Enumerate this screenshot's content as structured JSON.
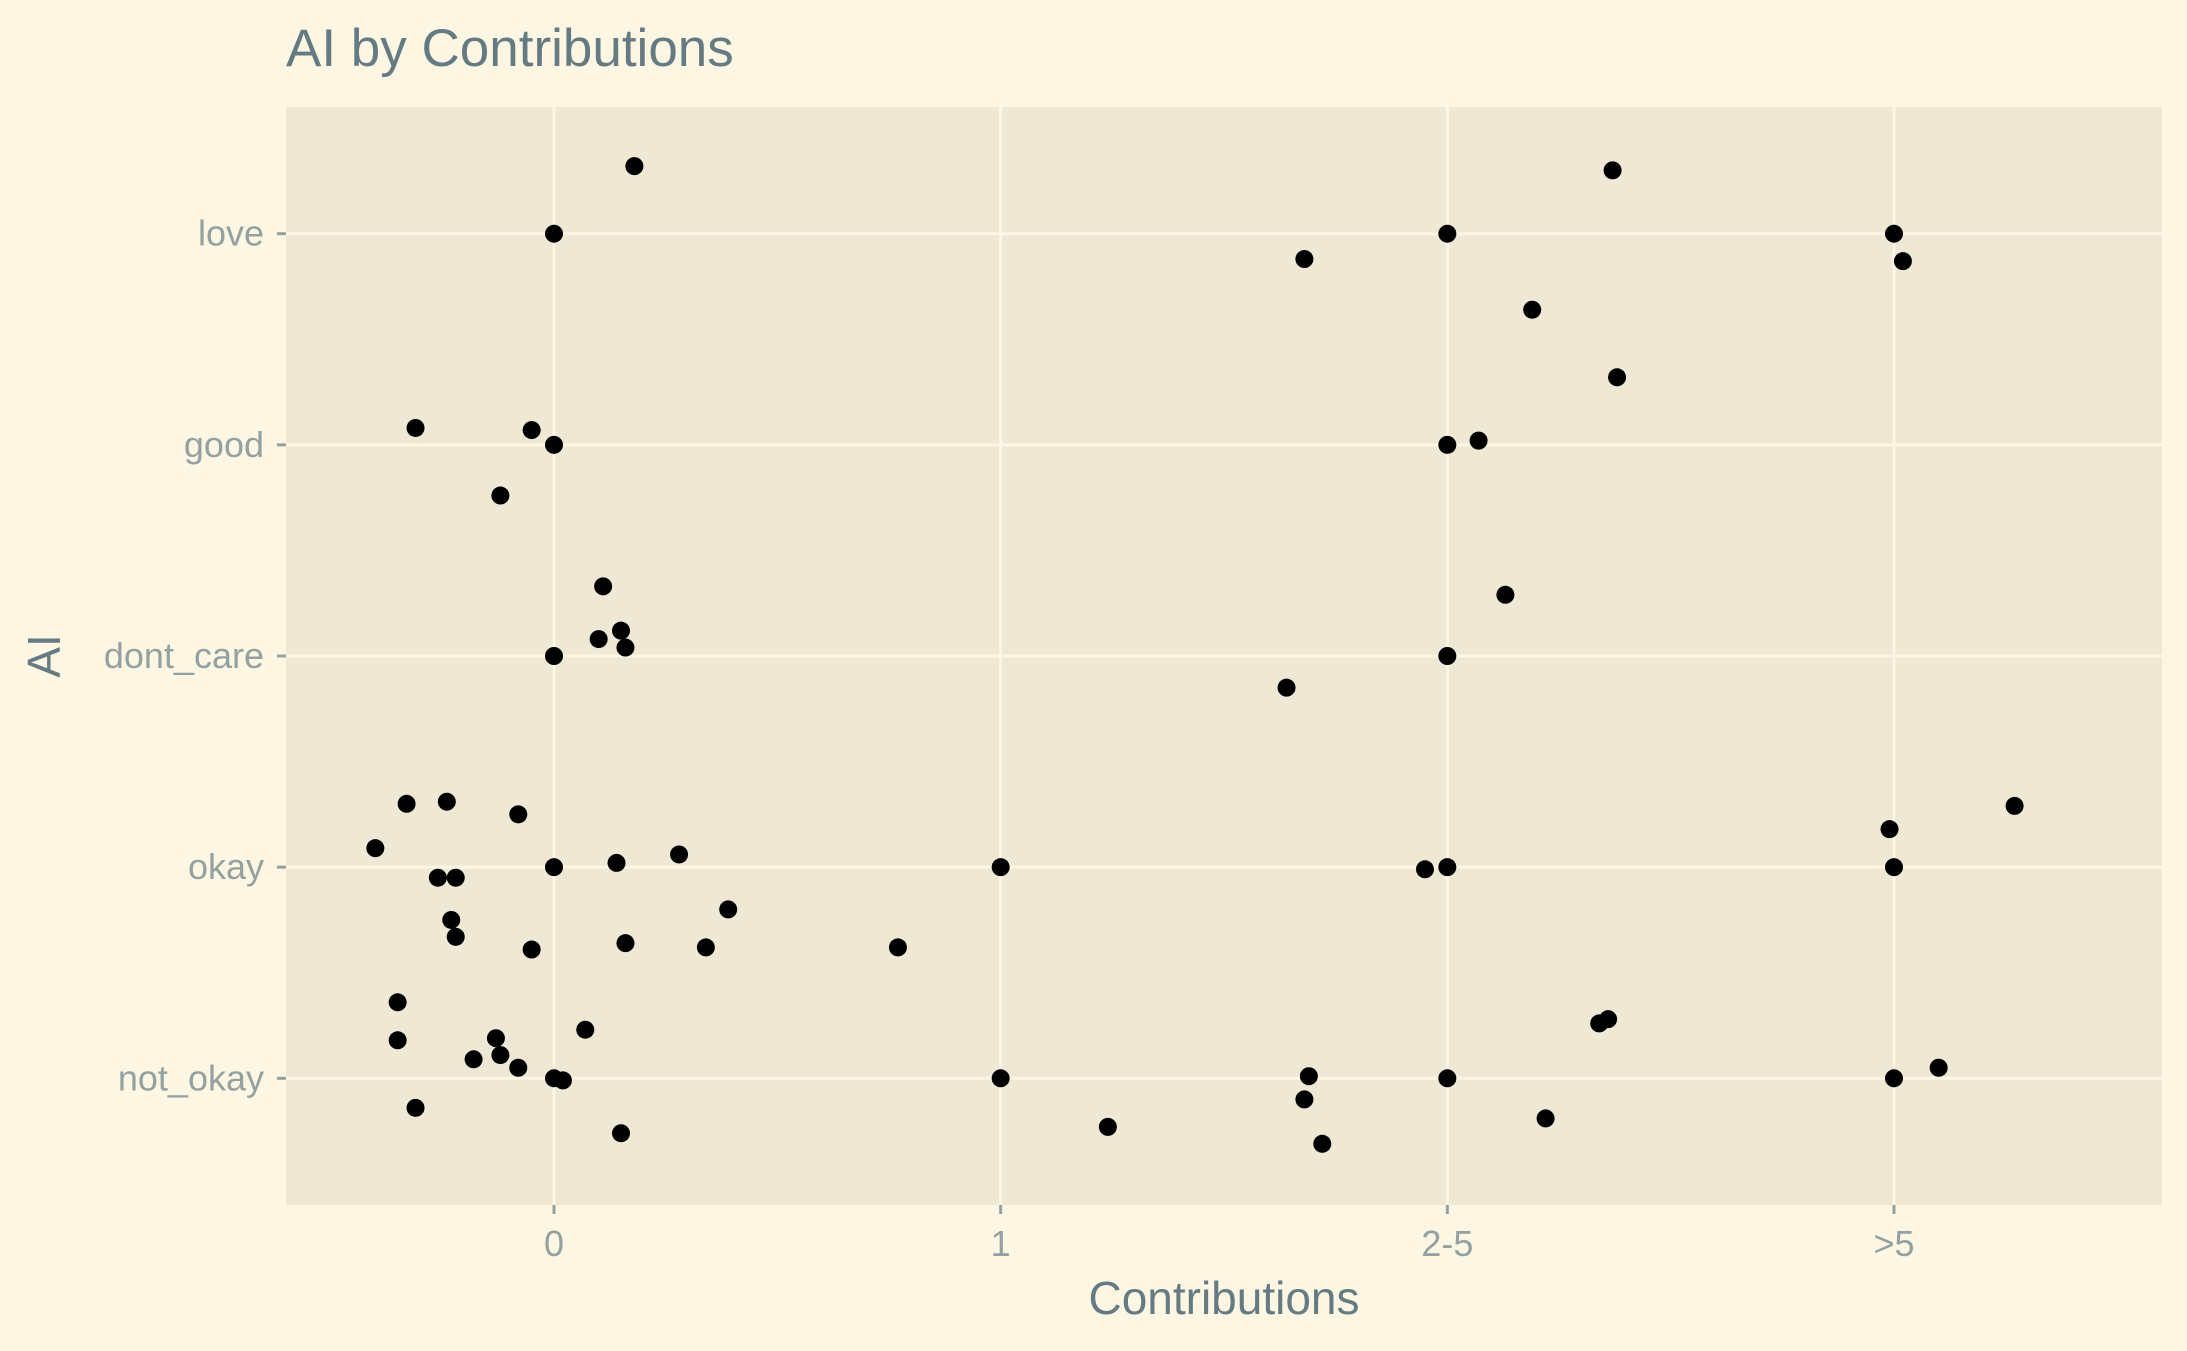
{
  "chart_data": {
    "type": "scatter",
    "title": "AI by Contributions",
    "xlabel": "Contributions",
    "ylabel": "AI",
    "x_categories": [
      "0",
      "1",
      "2-5",
      ">5"
    ],
    "y_categories": [
      "not_okay",
      "okay",
      "dont_care",
      "good",
      "love"
    ],
    "xlim": [
      -0.6,
      3.6
    ],
    "ylim": [
      0.4,
      5.6
    ],
    "grid": true,
    "colors": {
      "background": "#fdf6e3",
      "panel": "#eee8d5",
      "grid": "#fdf6e3",
      "point": "#000000",
      "text": "#657b83",
      "tick_text": "#93a1a1"
    },
    "points": [
      {
        "x": 0.18,
        "y": 5.32
      },
      {
        "x": 2.37,
        "y": 5.3
      },
      {
        "x": 0.0,
        "y": 5.0
      },
      {
        "x": 2.0,
        "y": 5.0
      },
      {
        "x": 3.0,
        "y": 5.0
      },
      {
        "x": 1.68,
        "y": 4.88
      },
      {
        "x": 3.02,
        "y": 4.87
      },
      {
        "x": 2.19,
        "y": 4.64
      },
      {
        "x": 2.38,
        "y": 4.32
      },
      {
        "x": -0.31,
        "y": 4.08
      },
      {
        "x": -0.05,
        "y": 4.07
      },
      {
        "x": 0.0,
        "y": 4.0
      },
      {
        "x": 2.0,
        "y": 4.0
      },
      {
        "x": 2.07,
        "y": 4.02
      },
      {
        "x": -0.12,
        "y": 3.76
      },
      {
        "x": 0.11,
        "y": 3.33
      },
      {
        "x": 2.13,
        "y": 3.29
      },
      {
        "x": 0.15,
        "y": 3.12
      },
      {
        "x": 0.1,
        "y": 3.08
      },
      {
        "x": 0.16,
        "y": 3.04
      },
      {
        "x": 0.0,
        "y": 3.0
      },
      {
        "x": 2.0,
        "y": 3.0
      },
      {
        "x": 1.64,
        "y": 2.85
      },
      {
        "x": -0.33,
        "y": 2.3
      },
      {
        "x": -0.24,
        "y": 2.31
      },
      {
        "x": -0.08,
        "y": 2.25
      },
      {
        "x": 3.27,
        "y": 2.29
      },
      {
        "x": 2.99,
        "y": 2.18
      },
      {
        "x": -0.4,
        "y": 2.09
      },
      {
        "x": 0.28,
        "y": 2.06
      },
      {
        "x": 0.14,
        "y": 2.02
      },
      {
        "x": 0.0,
        "y": 2.0
      },
      {
        "x": 1.0,
        "y": 2.0
      },
      {
        "x": 1.95,
        "y": 1.99
      },
      {
        "x": 2.0,
        "y": 2.0
      },
      {
        "x": 3.0,
        "y": 2.0
      },
      {
        "x": -0.26,
        "y": 1.95
      },
      {
        "x": -0.22,
        "y": 1.95
      },
      {
        "x": 0.39,
        "y": 1.8
      },
      {
        "x": -0.23,
        "y": 1.75
      },
      {
        "x": -0.22,
        "y": 1.67
      },
      {
        "x": 0.16,
        "y": 1.64
      },
      {
        "x": 0.34,
        "y": 1.62
      },
      {
        "x": 0.77,
        "y": 1.62
      },
      {
        "x": -0.05,
        "y": 1.61
      },
      {
        "x": -0.35,
        "y": 1.36
      },
      {
        "x": 0.07,
        "y": 1.23
      },
      {
        "x": 2.36,
        "y": 1.28
      },
      {
        "x": 2.34,
        "y": 1.26
      },
      {
        "x": -0.35,
        "y": 1.18
      },
      {
        "x": -0.13,
        "y": 1.19
      },
      {
        "x": -0.12,
        "y": 1.11
      },
      {
        "x": -0.18,
        "y": 1.09
      },
      {
        "x": -0.08,
        "y": 1.05
      },
      {
        "x": 3.1,
        "y": 1.05
      },
      {
        "x": 0.0,
        "y": 1.0
      },
      {
        "x": 0.02,
        "y": 0.99
      },
      {
        "x": 1.0,
        "y": 1.0
      },
      {
        "x": 1.69,
        "y": 1.01
      },
      {
        "x": 2.0,
        "y": 1.0
      },
      {
        "x": 3.0,
        "y": 1.0
      },
      {
        "x": 1.68,
        "y": 0.9
      },
      {
        "x": -0.31,
        "y": 0.86
      },
      {
        "x": 2.22,
        "y": 0.81
      },
      {
        "x": 1.24,
        "y": 0.77
      },
      {
        "x": 0.15,
        "y": 0.74
      },
      {
        "x": 1.72,
        "y": 0.69
      }
    ]
  }
}
